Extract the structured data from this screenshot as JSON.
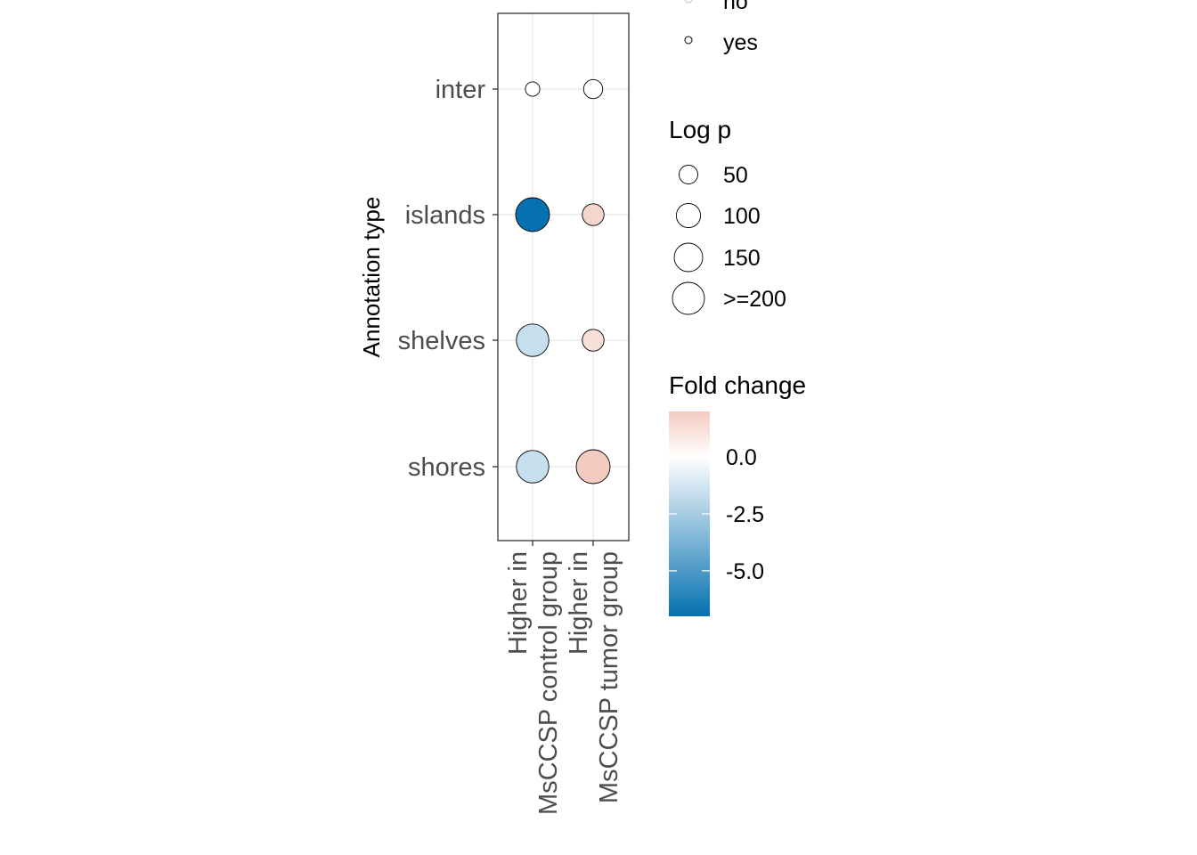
{
  "chart_data": {
    "type": "scatter",
    "subtype": "bubble",
    "ylabel": "Annotation type",
    "xlabel": "",
    "categories_y": [
      "inter",
      "islands",
      "shelves",
      "shores"
    ],
    "categories_x": [
      "Higher in\nMsCCSP control group",
      "Higher in\nMsCCSP tumor group"
    ],
    "grid": true,
    "points": [
      {
        "x": "Higher in\nMsCCSP control group",
        "y": "inter",
        "log_p": 15,
        "fold_change": 0.0,
        "significant": "yes"
      },
      {
        "x": "Higher in\nMsCCSP tumor group",
        "y": "inter",
        "log_p": 40,
        "fold_change": 0.0,
        "significant": "yes"
      },
      {
        "x": "Higher in\nMsCCSP control group",
        "y": "islands",
        "log_p": 200,
        "fold_change": -7.0,
        "significant": "yes"
      },
      {
        "x": "Higher in\nMsCCSP tumor group",
        "y": "islands",
        "log_p": 60,
        "fold_change": 1.6,
        "significant": "yes"
      },
      {
        "x": "Higher in\nMsCCSP control group",
        "y": "shelves",
        "log_p": 180,
        "fold_change": -1.6,
        "significant": "yes"
      },
      {
        "x": "Higher in\nMsCCSP tumor group",
        "y": "shelves",
        "log_p": 60,
        "fold_change": 1.2,
        "significant": "yes"
      },
      {
        "x": "Higher in\nMsCCSP control group",
        "y": "shores",
        "log_p": 180,
        "fold_change": -1.6,
        "significant": "yes"
      },
      {
        "x": "Higher in\nMsCCSP tumor group",
        "y": "shores",
        "log_p": 200,
        "fold_change": 2.0,
        "significant": "yes"
      }
    ],
    "legends": {
      "significance": {
        "title": "",
        "entries": [
          "no",
          "yes"
        ]
      },
      "size": {
        "title": "Log p",
        "entries": [
          {
            "label": "50",
            "value": 50
          },
          {
            "label": "100",
            "value": 100
          },
          {
            "label": "150",
            "value": 150
          },
          {
            "label": ">=200",
            "value": 200
          }
        ]
      },
      "color": {
        "title": "Fold change",
        "range": [
          -7.0,
          2.0
        ],
        "ticks": [
          {
            "label": "0.0",
            "value": 0.0
          },
          {
            "label": "-2.5",
            "value": -2.5
          },
          {
            "label": "-5.0",
            "value": -5.0
          }
        ],
        "low_color": "#0571b0",
        "mid_color": "#ffffff",
        "high_color": "#f4cbc1"
      }
    }
  }
}
